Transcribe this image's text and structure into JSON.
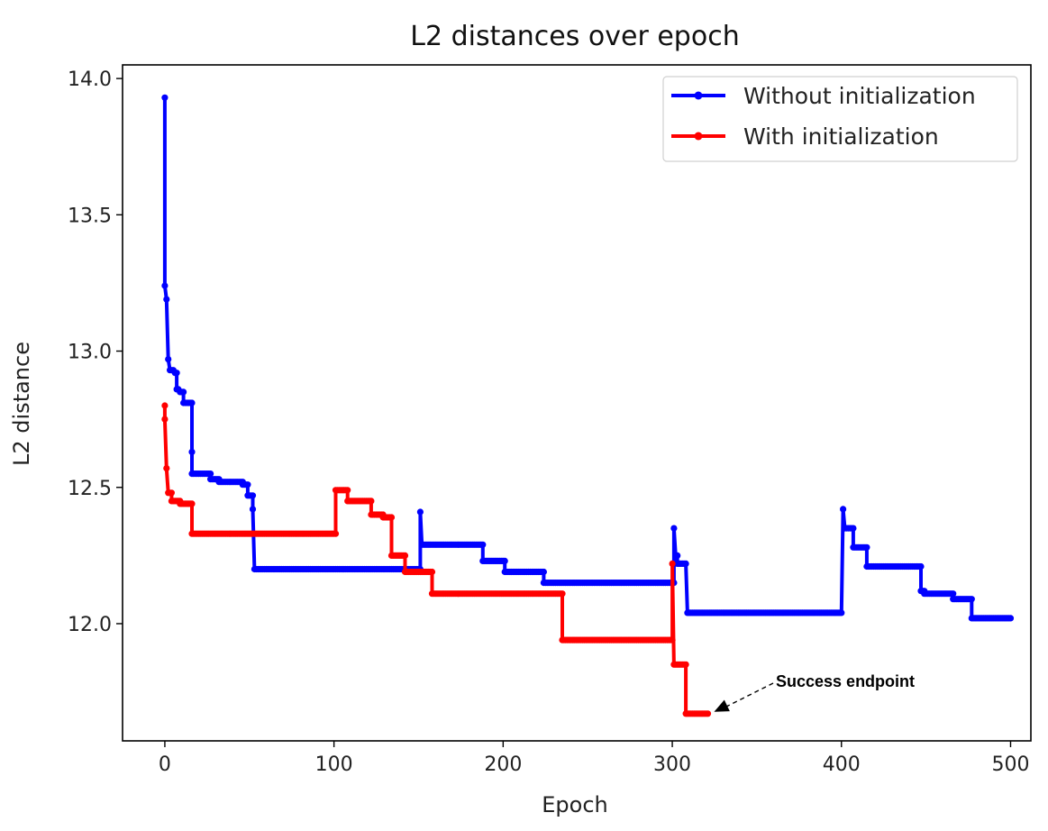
{
  "chart_data": {
    "type": "line",
    "title": "L2 distances over epoch",
    "xlabel": "Epoch",
    "ylabel": "L2 distance",
    "xlim": [
      -25,
      512
    ],
    "ylim": [
      11.57,
      14.05
    ],
    "xticks": [
      0,
      100,
      200,
      300,
      400,
      500
    ],
    "yticks": [
      12.0,
      12.5,
      13.0,
      13.5,
      14.0
    ],
    "ytick_labels": [
      "12.0",
      "12.5",
      "13.0",
      "13.5",
      "14.0"
    ],
    "grid": false,
    "legend_position": "top-right",
    "colors": {
      "without": "#0000ff",
      "with": "#ff0000",
      "axis": "#000000"
    },
    "series": [
      {
        "name": "Without initialization",
        "color": "#0000ff",
        "segments": [
          {
            "x0": 0,
            "x1": 0,
            "y": 13.93
          },
          {
            "x0": 0,
            "x1": 0,
            "y": 13.24
          },
          {
            "x0": 1,
            "x1": 1,
            "y": 13.19
          },
          {
            "x0": 2,
            "x1": 2,
            "y": 12.97
          },
          {
            "x0": 3,
            "x1": 5,
            "y": 12.93
          },
          {
            "x0": 6,
            "x1": 7,
            "y": 12.92
          },
          {
            "x0": 7,
            "x1": 8,
            "y": 12.86
          },
          {
            "x0": 9,
            "x1": 11,
            "y": 12.85
          },
          {
            "x0": 11,
            "x1": 16,
            "y": 12.81
          },
          {
            "x0": 16,
            "x1": 16,
            "y": 12.63
          },
          {
            "x0": 16,
            "x1": 27,
            "y": 12.55
          },
          {
            "x0": 27,
            "x1": 32,
            "y": 12.53
          },
          {
            "x0": 32,
            "x1": 46,
            "y": 12.52
          },
          {
            "x0": 46,
            "x1": 49,
            "y": 12.51
          },
          {
            "x0": 49,
            "x1": 52,
            "y": 12.47
          },
          {
            "x0": 52,
            "x1": 52,
            "y": 12.42
          },
          {
            "x0": 53,
            "x1": 151,
            "y": 12.2
          },
          {
            "x0": 151,
            "x1": 151,
            "y": 12.41
          },
          {
            "x0": 152,
            "x1": 188,
            "y": 12.29
          },
          {
            "x0": 188,
            "x1": 201,
            "y": 12.23
          },
          {
            "x0": 201,
            "x1": 224,
            "y": 12.19
          },
          {
            "x0": 224,
            "x1": 301,
            "y": 12.15
          },
          {
            "x0": 301,
            "x1": 301,
            "y": 12.35
          },
          {
            "x0": 302,
            "x1": 303,
            "y": 12.25
          },
          {
            "x0": 303,
            "x1": 308,
            "y": 12.22
          },
          {
            "x0": 309,
            "x1": 400,
            "y": 12.04
          },
          {
            "x0": 401,
            "x1": 401,
            "y": 12.42
          },
          {
            "x0": 402,
            "x1": 407,
            "y": 12.35
          },
          {
            "x0": 407,
            "x1": 415,
            "y": 12.28
          },
          {
            "x0": 415,
            "x1": 447,
            "y": 12.21
          },
          {
            "x0": 447,
            "x1": 449,
            "y": 12.12
          },
          {
            "x0": 449,
            "x1": 466,
            "y": 12.11
          },
          {
            "x0": 466,
            "x1": 477,
            "y": 12.09
          },
          {
            "x0": 477,
            "x1": 500,
            "y": 12.02
          }
        ]
      },
      {
        "name": "With initialization",
        "color": "#ff0000",
        "segments": [
          {
            "x0": 0,
            "x1": 0,
            "y": 12.8
          },
          {
            "x0": 0,
            "x1": 0,
            "y": 12.75
          },
          {
            "x0": 1,
            "x1": 1,
            "y": 12.57
          },
          {
            "x0": 2,
            "x1": 4,
            "y": 12.48
          },
          {
            "x0": 4,
            "x1": 9,
            "y": 12.45
          },
          {
            "x0": 9,
            "x1": 16,
            "y": 12.44
          },
          {
            "x0": 16,
            "x1": 101,
            "y": 12.33
          },
          {
            "x0": 101,
            "x1": 108,
            "y": 12.49
          },
          {
            "x0": 108,
            "x1": 122,
            "y": 12.45
          },
          {
            "x0": 122,
            "x1": 129,
            "y": 12.4
          },
          {
            "x0": 129,
            "x1": 134,
            "y": 12.39
          },
          {
            "x0": 134,
            "x1": 142,
            "y": 12.25
          },
          {
            "x0": 142,
            "x1": 158,
            "y": 12.19
          },
          {
            "x0": 158,
            "x1": 235,
            "y": 12.11
          },
          {
            "x0": 235,
            "x1": 300,
            "y": 11.94
          },
          {
            "x0": 300,
            "x1": 300,
            "y": 12.22
          },
          {
            "x0": 301,
            "x1": 308,
            "y": 11.85
          },
          {
            "x0": 308,
            "x1": 321,
            "y": 11.67
          }
        ]
      }
    ],
    "annotation": {
      "text": "Success endpoint",
      "point": [
        321,
        11.67
      ],
      "text_at": [
        373,
        11.77
      ]
    }
  }
}
